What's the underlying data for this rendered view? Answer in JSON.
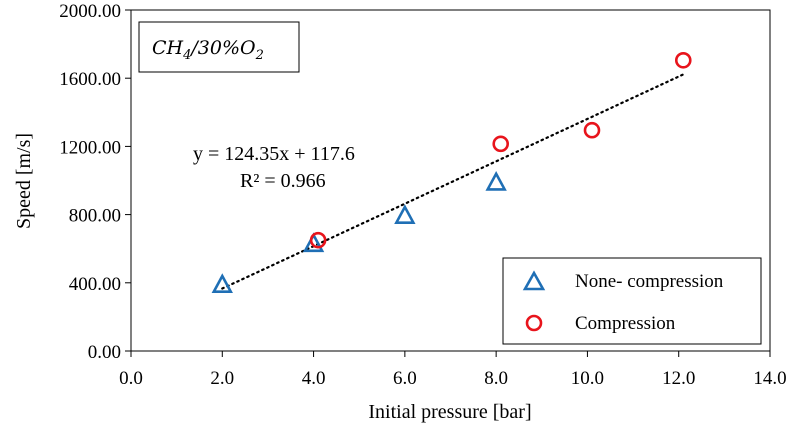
{
  "chart_data": {
    "type": "scatter",
    "xlabel": "Initial pressure [bar]",
    "ylabel": "Speed [m/s]",
    "xlim": [
      0,
      14
    ],
    "ylim": [
      0,
      2000
    ],
    "x_ticks": [
      "0.0",
      "2.0",
      "4.0",
      "6.0",
      "8.0",
      "10.0",
      "12.0",
      "14.0"
    ],
    "y_ticks": [
      "0.00",
      "400.00",
      "800.00",
      "1200.00",
      "1600.00",
      "2000.00"
    ],
    "grid": false,
    "legend_position": "bottom-right",
    "mixture_label": {
      "base": "CH",
      "sub1": "4",
      "mid": "/30%O",
      "sub2": "2"
    },
    "series": [
      {
        "name": "None- compression",
        "marker": "triangle",
        "color": "#1f6fb5",
        "points": [
          {
            "x": 2.0,
            "y": 390
          },
          {
            "x": 4.0,
            "y": 630
          },
          {
            "x": 6.0,
            "y": 795
          },
          {
            "x": 8.0,
            "y": 990
          }
        ]
      },
      {
        "name": "Compression",
        "marker": "circle",
        "color": "#e8141c",
        "points": [
          {
            "x": 4.1,
            "y": 650
          },
          {
            "x": 8.1,
            "y": 1215
          },
          {
            "x": 10.1,
            "y": 1295
          },
          {
            "x": 12.1,
            "y": 1705
          }
        ]
      }
    ],
    "trendline": {
      "style": "dotted",
      "color": "#000000",
      "x_range": [
        2.0,
        12.1
      ],
      "slope": 124.35,
      "intercept": 117.6,
      "equation": "y = 124.35x + 117.6",
      "r_squared": "R² = 0.966"
    }
  }
}
